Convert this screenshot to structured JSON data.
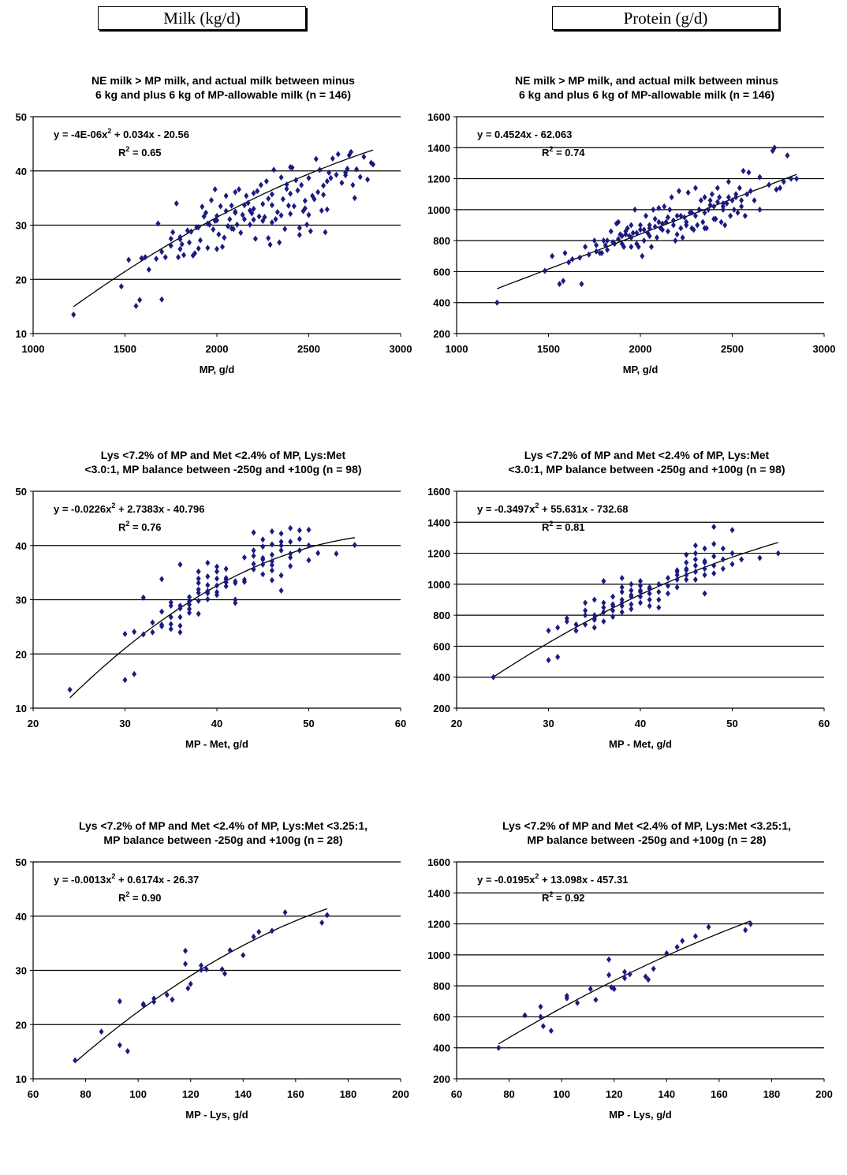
{
  "headers": {
    "left": "Milk (kg/d)",
    "right": "Protein (g/d)"
  },
  "chart_data": [
    {
      "id": "c1",
      "type": "scatter",
      "title": [
        "NE milk > MP milk, and actual milk between minus",
        "6 kg and plus 6 kg of MP-allowable milk (n = 146)"
      ],
      "xlabel": "MP, g/d",
      "ylabel": "",
      "xlim": [
        1000,
        3000
      ],
      "ylim": [
        10,
        50
      ],
      "xticks": [
        1000,
        1500,
        2000,
        2500,
        3000
      ],
      "yticks": [
        10,
        20,
        30,
        40,
        50
      ],
      "equation": "y = -4E-06x² + 0.034x - 20.56",
      "r2": "R² = 0.65",
      "trend": {
        "kind": "poly",
        "coef": [
          -4e-06,
          0.034,
          -20.56
        ],
        "x_range": [
          1220,
          2850
        ]
      },
      "x": [
        1220,
        1480,
        1520,
        1560,
        1580,
        1590,
        1610,
        1630,
        1670,
        1680,
        1700,
        1720,
        1750,
        1760,
        1780,
        1790,
        1800,
        1800,
        1810,
        1820,
        1840,
        1860,
        1870,
        1880,
        1890,
        1900,
        1910,
        1920,
        1930,
        1940,
        1950,
        1960,
        1970,
        1980,
        1990,
        2000,
        2000,
        2010,
        2020,
        2030,
        2040,
        2050,
        2060,
        2070,
        2080,
        2090,
        2100,
        2100,
        2110,
        2120,
        2130,
        2140,
        2150,
        2160,
        2170,
        2180,
        2190,
        2200,
        2200,
        2210,
        2220,
        2230,
        2240,
        2250,
        2260,
        2270,
        2280,
        2290,
        2300,
        2300,
        2310,
        2320,
        2330,
        2340,
        2350,
        2360,
        2370,
        2380,
        2390,
        2400,
        2400,
        2410,
        2420,
        2430,
        2440,
        2450,
        2460,
        2470,
        2480,
        2490,
        2500,
        2510,
        2520,
        2530,
        2540,
        2550,
        2560,
        2570,
        2580,
        2590,
        2600,
        2610,
        2620,
        2630,
        2650,
        2660,
        2680,
        2700,
        2710,
        2720,
        2730,
        2740,
        2750,
        2760,
        2780,
        2800,
        2820,
        2840,
        2850,
        1990,
        2050,
        2150,
        2250,
        2350,
        2450,
        1850,
        1950,
        2080,
        2180,
        2280,
        2380,
        2480,
        2580,
        1700,
        1800,
        1900,
        2000,
        2100,
        2200,
        2300,
        2400,
        2500,
        2600,
        2700,
        1750
      ],
      "y": [
        13.5,
        18.7,
        23.6,
        15.1,
        16.2,
        23.9,
        24.1,
        21.8,
        23.8,
        30.3,
        16.3,
        24.1,
        27.5,
        28.7,
        34,
        24.1,
        25.6,
        27.8,
        26.5,
        24.5,
        29,
        28.8,
        24.4,
        24.8,
        29.6,
        25.7,
        27.2,
        33.4,
        31.6,
        32.3,
        25.8,
        30.1,
        34.6,
        29.2,
        36.6,
        25.6,
        30.9,
        28.3,
        33.5,
        26,
        27.7,
        35.4,
        29.8,
        31.1,
        33.6,
        29.3,
        32.3,
        36.1,
        30.1,
        36.6,
        28.6,
        31.9,
        33.7,
        35.4,
        34.1,
        30.1,
        32.2,
        35.9,
        33,
        27.5,
        36.3,
        31.6,
        37.4,
        30.8,
        31.5,
        38.1,
        27.6,
        26.4,
        35.7,
        30.5,
        40.2,
        31.1,
        32.4,
        26.8,
        38.8,
        34.8,
        29.3,
        37.5,
        33.6,
        40.7,
        32.1,
        40.6,
        33.5,
        38.3,
        36.4,
        28.2,
        37.4,
        32.6,
        34.5,
        30.1,
        38.7,
        28.9,
        35.4,
        34.8,
        42.2,
        36.1,
        40.2,
        32.7,
        35.6,
        28.7,
        32.9,
        39.7,
        38.7,
        42.3,
        39.3,
        43.1,
        37.8,
        39.7,
        40.4,
        42.9,
        43.5,
        37.4,
        35,
        40.3,
        38.9,
        42.6,
        38.4,
        41.5,
        41.2,
        30.8,
        32.6,
        31.1,
        33.9,
        31.8,
        29.5,
        26.8,
        30.3,
        29.4,
        32.7,
        34.9,
        36.7,
        33.1,
        37.3,
        25.1,
        27.4,
        29.6,
        31.7,
        32.5,
        31,
        33.7,
        35.8,
        31.9,
        38.1,
        39.2,
        26.2
      ]
    },
    {
      "id": "c2",
      "type": "scatter",
      "title": [
        "NE milk > MP milk, and actual milk between minus",
        "6 kg and plus 6 kg of MP-allowable milk (n = 146)"
      ],
      "xlabel": "MP, g/d",
      "ylabel": "",
      "xlim": [
        1000,
        3000
      ],
      "ylim": [
        200,
        1600
      ],
      "xticks": [
        1000,
        1500,
        2000,
        2500,
        3000
      ],
      "yticks": [
        200,
        400,
        600,
        800,
        1000,
        1200,
        1400,
        1600
      ],
      "equation": "y = 0.4524x - 62.063",
      "r2": "R² = 0.74",
      "trend": {
        "kind": "poly",
        "coef": [
          0,
          0.4524,
          -62.063
        ],
        "x_range": [
          1220,
          2850
        ]
      },
      "x": [
        1220,
        1480,
        1520,
        1560,
        1580,
        1590,
        1610,
        1630,
        1670,
        1680,
        1700,
        1720,
        1750,
        1760,
        1780,
        1790,
        1800,
        1810,
        1820,
        1840,
        1860,
        1870,
        1880,
        1890,
        1900,
        1910,
        1920,
        1930,
        1940,
        1950,
        1960,
        1970,
        1980,
        1990,
        2000,
        2010,
        2020,
        2030,
        2040,
        2050,
        2060,
        2070,
        2080,
        2090,
        2100,
        2110,
        2120,
        2130,
        2140,
        2150,
        2160,
        2170,
        2180,
        2190,
        2200,
        2210,
        2220,
        2230,
        2240,
        2250,
        2260,
        2270,
        2280,
        2290,
        2300,
        2310,
        2320,
        2330,
        2340,
        2350,
        2360,
        2370,
        2380,
        2390,
        2400,
        2410,
        2420,
        2430,
        2440,
        2450,
        2460,
        2470,
        2480,
        2490,
        2500,
        2510,
        2520,
        2530,
        2540,
        2550,
        2560,
        2570,
        2580,
        2590,
        2600,
        2620,
        2650,
        2700,
        2720,
        2730,
        2740,
        2760,
        2780,
        2800,
        2820,
        2850,
        1900,
        1950,
        2000,
        2050,
        2100,
        2150,
        2200,
        2250,
        2300,
        2350,
        2400,
        2450,
        1850,
        1950,
        2050,
        2150,
        2250,
        2350,
        2450,
        2550,
        2650,
        1760,
        1820,
        1880,
        1920,
        1980,
        2020,
        2080,
        2120,
        2180,
        2220,
        2280,
        2320,
        2380,
        2420,
        2480,
        2520
      ],
      "y": [
        400,
        605,
        700,
        520,
        540,
        720,
        660,
        680,
        690,
        520,
        760,
        710,
        800,
        770,
        720,
        720,
        800,
        770,
        740,
        860,
        780,
        910,
        920,
        840,
        780,
        760,
        860,
        880,
        830,
        900,
        850,
        1000,
        780,
        760,
        900,
        700,
        800,
        960,
        850,
        880,
        760,
        1000,
        940,
        820,
        1010,
        880,
        870,
        1020,
        920,
        950,
        1000,
        1080,
        900,
        800,
        960,
        1120,
        880,
        820,
        950,
        900,
        1110,
        980,
        880,
        870,
        1140,
        900,
        1000,
        1060,
        920,
        1080,
        880,
        1000,
        1060,
        1100,
        1020,
        940,
        1140,
        1080,
        920,
        1000,
        900,
        1040,
        1180,
        960,
        1060,
        1000,
        1080,
        980,
        1140,
        1020,
        1250,
        960,
        1100,
        1240,
        1120,
        1060,
        1210,
        1160,
        1380,
        1400,
        1130,
        1140,
        1180,
        1350,
        1200,
        1200,
        830,
        760,
        870,
        830,
        920,
        860,
        840,
        900,
        960,
        880,
        940,
        1020,
        790,
        820,
        900,
        950,
        920,
        980,
        1040,
        1060,
        1000,
        730,
        800,
        810,
        840,
        850,
        870,
        890,
        910,
        930,
        960,
        980,
        1000,
        1030,
        1050,
        1080,
        1100
      ]
    },
    {
      "id": "c3",
      "type": "scatter",
      "title": [
        "Lys <7.2% of MP and Met <2.4% of MP, Lys:Met",
        "<3.0:1, MP balance between -250g and +100g (n = 98)"
      ],
      "xlabel": "MP - Met, g/d",
      "ylabel": "",
      "xlim": [
        20,
        60
      ],
      "ylim": [
        10,
        50
      ],
      "xticks": [
        20,
        30,
        40,
        50,
        60
      ],
      "yticks": [
        10,
        20,
        30,
        40,
        50
      ],
      "equation": "y = -0.0226x² + 2.7383x - 40.796",
      "r2": "R² = 0.76",
      "trend": {
        "kind": "poly",
        "coef": [
          -0.0226,
          2.7383,
          -40.796
        ],
        "x_range": [
          24,
          55
        ]
      },
      "x": [
        24,
        30,
        30,
        31,
        31,
        32,
        32,
        33,
        33,
        34,
        34,
        34,
        35,
        35,
        35,
        35,
        36,
        36,
        36,
        36,
        36,
        37,
        37,
        37,
        37,
        38,
        38,
        38,
        38,
        38,
        38,
        39,
        39,
        39,
        39,
        39,
        40,
        40,
        40,
        40,
        40,
        41,
        41,
        41,
        41,
        42,
        42,
        42,
        43,
        43,
        44,
        44,
        44,
        44,
        45,
        45,
        45,
        45,
        45,
        46,
        46,
        46,
        46,
        46,
        46,
        47,
        47,
        47,
        47,
        47,
        48,
        48,
        48,
        48,
        48,
        49,
        49,
        49,
        50,
        50,
        50,
        51,
        53,
        55,
        34,
        35,
        36,
        37,
        38,
        39,
        40,
        41,
        42,
        43,
        44,
        45,
        46,
        47
      ],
      "y": [
        13.4,
        15.2,
        23.7,
        16.3,
        24.1,
        23.6,
        30.4,
        24,
        25.8,
        27.8,
        25.1,
        33.8,
        28.9,
        24.6,
        25.5,
        29.5,
        26.8,
        24,
        25.2,
        28.9,
        36.5,
        27.6,
        28.3,
        30.5,
        29.7,
        31.3,
        27.4,
        29.8,
        33.1,
        33.9,
        35.2,
        30.1,
        31.6,
        34.3,
        36.8,
        32.7,
        31.4,
        33.9,
        36.1,
        30.9,
        35.2,
        34,
        32.5,
        33.2,
        35.7,
        29.4,
        30,
        33.4,
        33.3,
        33.7,
        35.6,
        38.1,
        39.1,
        42.4,
        34.7,
        36.5,
        37.7,
        39.8,
        41.1,
        33.6,
        38.3,
        40.2,
        42.6,
        35.4,
        37.1,
        31.7,
        34.5,
        40,
        40.7,
        42.2,
        36.2,
        38.5,
        40.7,
        43.2,
        37.8,
        41.2,
        39.1,
        42.8,
        40,
        42.9,
        37.3,
        38.6,
        38.5,
        40.1,
        25.4,
        26.8,
        28.4,
        29.1,
        31.9,
        31.2,
        32.6,
        33.7,
        33.1,
        37.8,
        36.6,
        37.4,
        36.4,
        39.1
      ]
    },
    {
      "id": "c4",
      "type": "scatter",
      "title": [
        "Lys <7.2% of MP and Met <2.4% of MP, Lys:Met",
        "<3.0:1, MP balance between -250g and +100g (n = 98)"
      ],
      "xlabel": "MP - Met, g/d",
      "ylabel": "",
      "xlim": [
        20,
        60
      ],
      "ylim": [
        200,
        1600
      ],
      "xticks": [
        20,
        30,
        40,
        50,
        60
      ],
      "yticks": [
        200,
        400,
        600,
        800,
        1000,
        1200,
        1400,
        1600
      ],
      "equation": "y = -0.3497x² + 55.631x - 732.68",
      "r2": "R² = 0.81",
      "trend": {
        "kind": "poly",
        "coef": [
          -0.3497,
          55.631,
          -732.68
        ],
        "x_range": [
          24,
          55
        ]
      },
      "x": [
        24,
        30,
        30,
        31,
        31,
        32,
        32,
        33,
        33,
        34,
        34,
        34,
        35,
        35,
        35,
        35,
        36,
        36,
        36,
        36,
        36,
        37,
        37,
        37,
        37,
        38,
        38,
        38,
        38,
        38,
        38,
        39,
        39,
        39,
        39,
        39,
        40,
        40,
        40,
        40,
        40,
        41,
        41,
        41,
        41,
        42,
        42,
        42,
        43,
        43,
        44,
        44,
        44,
        44,
        45,
        45,
        45,
        45,
        45,
        46,
        46,
        46,
        46,
        46,
        46,
        47,
        47,
        47,
        47,
        47,
        48,
        48,
        48,
        48,
        48,
        49,
        49,
        49,
        50,
        50,
        50,
        51,
        53,
        55,
        34,
        35,
        36,
        37,
        38,
        39,
        40,
        41,
        42,
        43,
        44,
        45,
        46,
        47
      ],
      "y": [
        400,
        510,
        700,
        530,
        720,
        760,
        780,
        700,
        740,
        800,
        830,
        880,
        720,
        770,
        800,
        900,
        760,
        820,
        850,
        880,
        1020,
        790,
        830,
        870,
        920,
        820,
        860,
        900,
        950,
        980,
        1040,
        840,
        870,
        930,
        960,
        1000,
        880,
        920,
        960,
        990,
        1020,
        860,
        900,
        940,
        970,
        850,
        900,
        950,
        940,
        990,
        980,
        1030,
        1090,
        1080,
        1030,
        1060,
        1100,
        1140,
        1190,
        1030,
        1080,
        1120,
        1160,
        1200,
        1250,
        940,
        1060,
        1100,
        1150,
        1230,
        1070,
        1120,
        1180,
        1260,
        1370,
        1100,
        1160,
        1230,
        1130,
        1200,
        1350,
        1160,
        1170,
        1200,
        740,
        780,
        820,
        860,
        880,
        920,
        950,
        980,
        1000,
        1040,
        1060,
        1090,
        1120,
        1140
      ]
    },
    {
      "id": "c5",
      "type": "scatter",
      "title": [
        "Lys <7.2% of MP and Met <2.4% of MP, Lys:Met <3.25:1,",
        "MP balance between -250g and +100g (n = 28)"
      ],
      "xlabel": "MP - Lys, g/d",
      "ylabel": "",
      "xlim": [
        60,
        200
      ],
      "ylim": [
        10,
        50
      ],
      "xticks": [
        60,
        80,
        100,
        120,
        140,
        160,
        180,
        200
      ],
      "yticks": [
        10,
        20,
        30,
        40,
        50
      ],
      "equation": "y = -0.0013x² + 0.6174x - 26.37",
      "r2": "R² = 0.90",
      "trend": {
        "kind": "poly",
        "coef": [
          -0.0013,
          0.6174,
          -26.37
        ],
        "x_range": [
          76,
          172
        ]
      },
      "x": [
        76,
        86,
        93,
        93,
        96,
        102,
        106,
        106,
        111,
        113,
        118,
        118,
        119,
        120,
        124,
        124,
        126,
        132,
        133,
        135,
        140,
        144,
        146,
        151,
        156,
        170,
        172,
        102
      ],
      "y": [
        13.4,
        18.7,
        24.3,
        16.2,
        15.1,
        23.6,
        24.2,
        24.8,
        25.5,
        24.6,
        33.6,
        31.2,
        26.7,
        27.5,
        30.9,
        30.1,
        30.2,
        30.2,
        29.4,
        33.7,
        32.8,
        36.2,
        37.1,
        37.3,
        40.7,
        38.8,
        40.2,
        23.8
      ]
    },
    {
      "id": "c6",
      "type": "scatter",
      "title": [
        "Lys <7.2% of MP and Met <2.4% of MP, Lys:Met <3.25:1,",
        "MP balance between -250g and +100g (n = 28)"
      ],
      "xlabel": "MP - Lys, g/d",
      "ylabel": "",
      "xlim": [
        60,
        200
      ],
      "ylim": [
        200,
        1600
      ],
      "xticks": [
        60,
        80,
        100,
        120,
        140,
        160,
        180,
        200
      ],
      "yticks": [
        200,
        400,
        600,
        800,
        1000,
        1200,
        1400,
        1600
      ],
      "equation": "y = -0.0195x² + 13.098x - 457.31",
      "r2": "R² = 0.92",
      "trend": {
        "kind": "poly",
        "coef": [
          -0.0195,
          13.098,
          -457.31
        ],
        "x_range": [
          76,
          172
        ]
      },
      "x": [
        76,
        86,
        92,
        93,
        96,
        102,
        106,
        111,
        113,
        118,
        118,
        119,
        120,
        124,
        124,
        126,
        132,
        133,
        135,
        140,
        144,
        146,
        151,
        156,
        170,
        172,
        92,
        102
      ],
      "y": [
        400,
        610,
        665,
        540,
        510,
        735,
        690,
        780,
        710,
        970,
        870,
        790,
        780,
        850,
        890,
        875,
        860,
        840,
        910,
        1010,
        1050,
        1090,
        1120,
        1180,
        1160,
        1200,
        600,
        720
      ]
    }
  ]
}
